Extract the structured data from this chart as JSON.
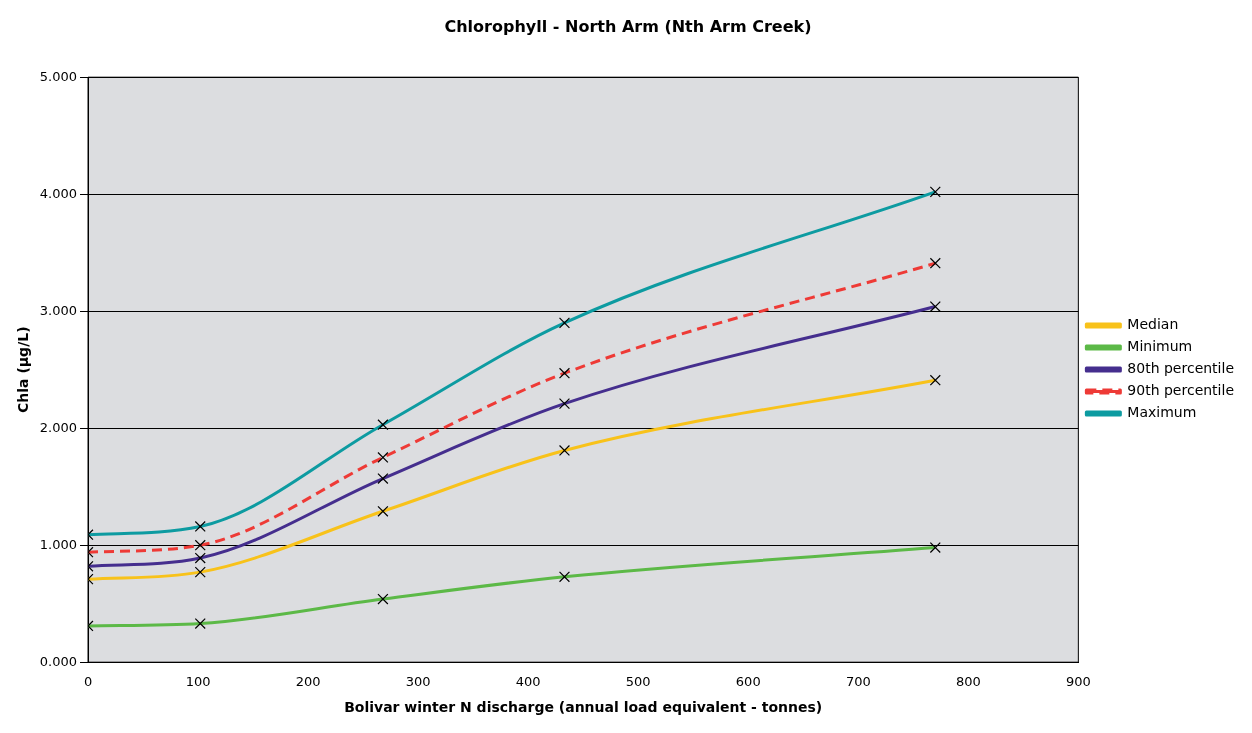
{
  "chart_data": {
    "type": "line",
    "title": "Chlorophyll - North Arm (Nth Arm Creek)",
    "xlabel": "Bolivar winter N discharge (annual load equivalent - tonnes)",
    "ylabel": "Chla (µg/L)",
    "x": [
      0,
      102,
      268,
      433,
      770
    ],
    "series": [
      {
        "name": "Median",
        "color": "#f8c21a",
        "values": [
          0.71,
          0.77,
          1.29,
          1.81,
          2.41
        ]
      },
      {
        "name": "Minimum",
        "color": "#5cb947",
        "values": [
          0.31,
          0.33,
          0.54,
          0.73,
          0.98
        ]
      },
      {
        "name": "80th percentile",
        "color": "#452e8e",
        "values": [
          0.82,
          0.89,
          1.57,
          2.21,
          3.04
        ]
      },
      {
        "name": "90th percentile",
        "color": "#ee3a36",
        "values": [
          0.94,
          1.0,
          1.75,
          2.47,
          3.41
        ],
        "line_style": "dashed"
      },
      {
        "name": "Maximum",
        "color": "#0d9ba1",
        "values": [
          1.09,
          1.16,
          2.03,
          2.9,
          4.02
        ]
      }
    ],
    "xlim": [
      0,
      900
    ],
    "xticks": [
      0,
      100,
      200,
      300,
      400,
      500,
      600,
      700,
      800,
      900
    ],
    "ylim": [
      0,
      5
    ],
    "yticks": [
      {
        "value": 0,
        "label": "0.000"
      },
      {
        "value": 1,
        "label": "1.000"
      },
      {
        "value": 2,
        "label": "2.000"
      },
      {
        "value": 3,
        "label": "3.000"
      },
      {
        "value": 4,
        "label": "4.000"
      },
      {
        "value": 5,
        "label": "5.000"
      }
    ],
    "grid": "y",
    "legend": "right",
    "marker": "cross",
    "line_style": "solid"
  }
}
